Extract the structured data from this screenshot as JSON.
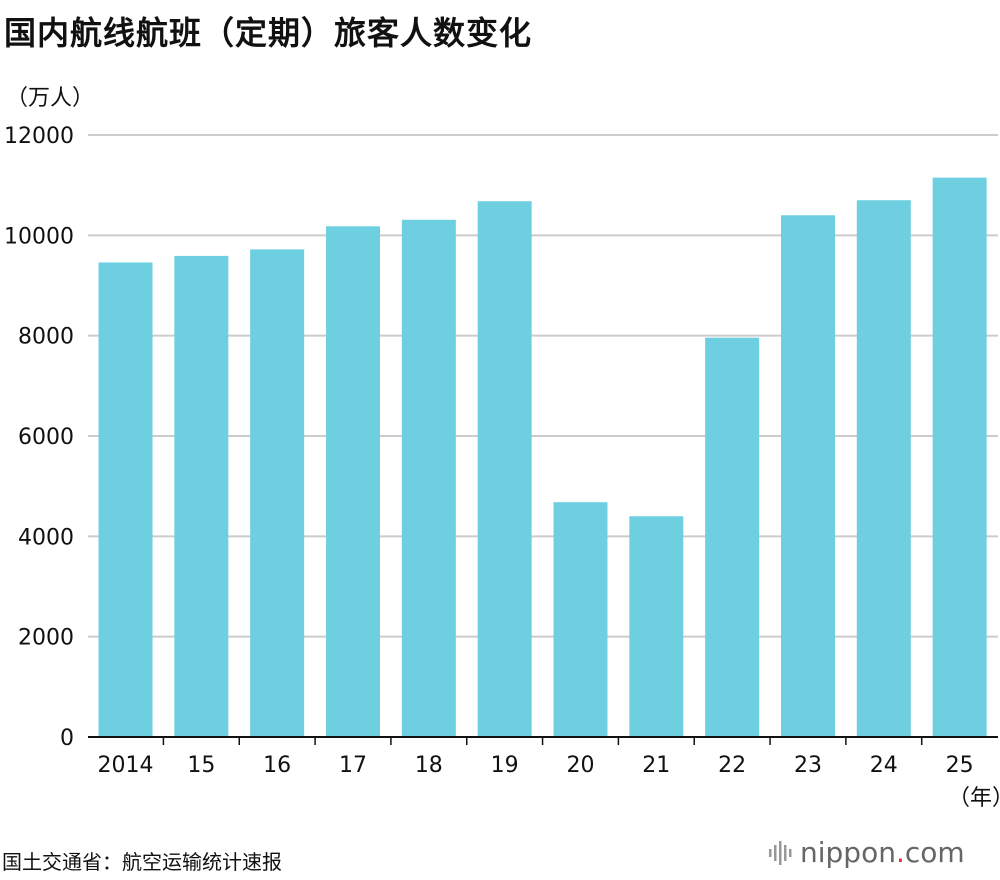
{
  "title": "国内航线航班（定期）旅客人数变化",
  "source": "国土交通省：航空运输统计速报",
  "logo": {
    "name": "nippon",
    "dot": ".",
    "domain": "com",
    "mark_icon": "sound-bars-icon",
    "dot_color": "#e8303a"
  },
  "chart_data": {
    "type": "bar",
    "title": "国内航线航班（定期）旅客人数变化",
    "ylabel": "（万人）",
    "xlabel": "（年）",
    "categories": [
      "2014",
      "15",
      "16",
      "17",
      "18",
      "19",
      "20",
      "21",
      "22",
      "23",
      "24",
      "25"
    ],
    "values": [
      9460,
      9590,
      9720,
      10180,
      10310,
      10680,
      4680,
      4400,
      7960,
      10400,
      10700,
      11150
    ],
    "ylim": [
      0,
      12000
    ],
    "yticks": [
      0,
      2000,
      4000,
      6000,
      8000,
      10000,
      12000
    ],
    "grid": true,
    "bar_color": "#6dcfe0",
    "grid_color": "#cccccc"
  }
}
